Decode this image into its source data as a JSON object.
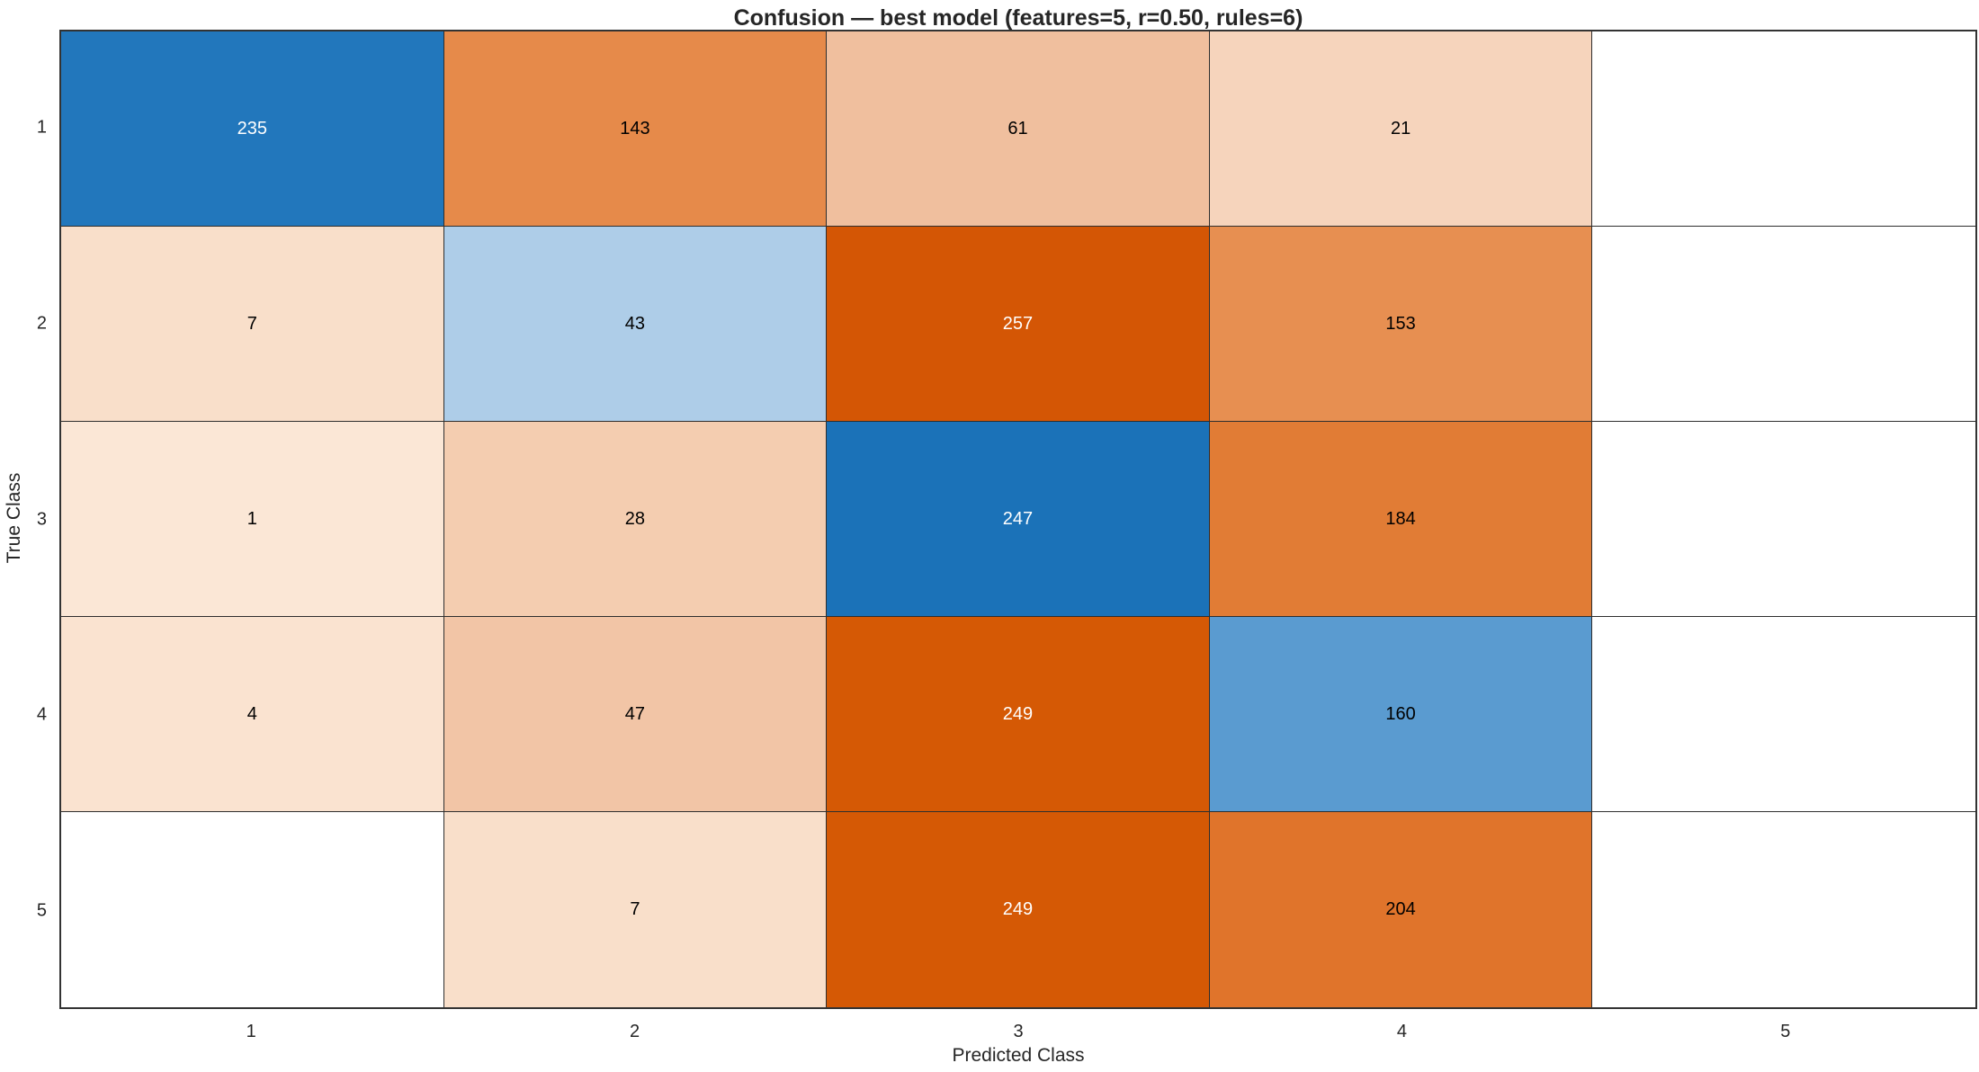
{
  "title": "Confusion — best model (features=5, r=0.50, rules=6)",
  "chart_data": {
    "type": "heatmap",
    "subtype": "confusion-matrix",
    "title": "Confusion — best model (features=5, r=0.50, rules=6)",
    "xlabel": "Predicted Class",
    "ylabel": "True Class",
    "x_tick_labels": [
      "1",
      "2",
      "3",
      "4",
      "5"
    ],
    "y_tick_labels": [
      "1",
      "2",
      "3",
      "4",
      "5"
    ],
    "grid": "on",
    "legend": "none",
    "matrix": [
      [
        235,
        143,
        61,
        21,
        null
      ],
      [
        7,
        43,
        257,
        153,
        null
      ],
      [
        1,
        28,
        247,
        184,
        null
      ],
      [
        4,
        47,
        249,
        160,
        null
      ],
      [
        null,
        7,
        249,
        204,
        null
      ]
    ],
    "cell_colors": [
      [
        "#2277bc",
        "#e68a4a",
        "#f0bf9e",
        "#f6d4bc",
        "#ffffff"
      ],
      [
        "#f9dfca",
        "#aecde8",
        "#d45605",
        "#e78f51",
        "#ffffff"
      ],
      [
        "#fbe7d6",
        "#f4cdb0",
        "#1b72b8",
        "#e17c35",
        "#ffffff"
      ],
      [
        "#fae3d0",
        "#f2c5a6",
        "#d55905",
        "#5a9bd0",
        "#ffffff"
      ],
      [
        "#ffffff",
        "#f9dfca",
        "#d55905",
        "#e0742b",
        "#ffffff"
      ]
    ],
    "cell_text_colors": [
      [
        "#ffffff",
        "#000000",
        "#000000",
        "#000000",
        "#000000"
      ],
      [
        "#000000",
        "#000000",
        "#ffffff",
        "#000000",
        "#000000"
      ],
      [
        "#000000",
        "#000000",
        "#ffffff",
        "#000000",
        "#000000"
      ],
      [
        "#000000",
        "#000000",
        "#ffffff",
        "#000000",
        "#000000"
      ],
      [
        "#000000",
        "#000000",
        "#ffffff",
        "#000000",
        "#000000"
      ]
    ],
    "colors": {
      "diagonal_base": "#1b72b8",
      "off_diagonal_base": "#d45605",
      "empty_cell": "#ffffff",
      "grid_line": "#2e2e2e",
      "axis_text": "#262626"
    }
  }
}
